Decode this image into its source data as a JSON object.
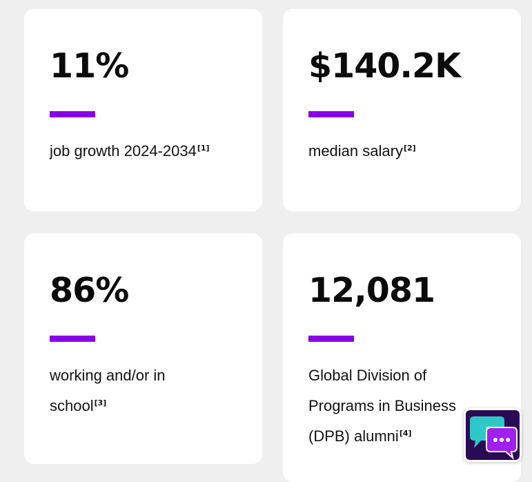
{
  "stats": [
    {
      "value": "11%",
      "label": "job growth 2024-2034",
      "ref": "[1]"
    },
    {
      "value": "$140.2K",
      "label": "median salary",
      "ref": "[2]"
    },
    {
      "value": "86%",
      "label": "working and/or in school",
      "ref": "[3]"
    },
    {
      "value": "12,081",
      "label": "Global Division of Programs in Business (DPB) alumni",
      "ref": "[4]"
    }
  ],
  "chat_widget": {
    "icon": "chat-bubbles-icon"
  },
  "colors": {
    "accent": "#8a00e6",
    "page_background": "#efefef",
    "card_background": "#ffffff",
    "chat_teal": "#2ec8c8",
    "chat_purple": "#a020f0",
    "chat_background": "#2a0a55"
  }
}
